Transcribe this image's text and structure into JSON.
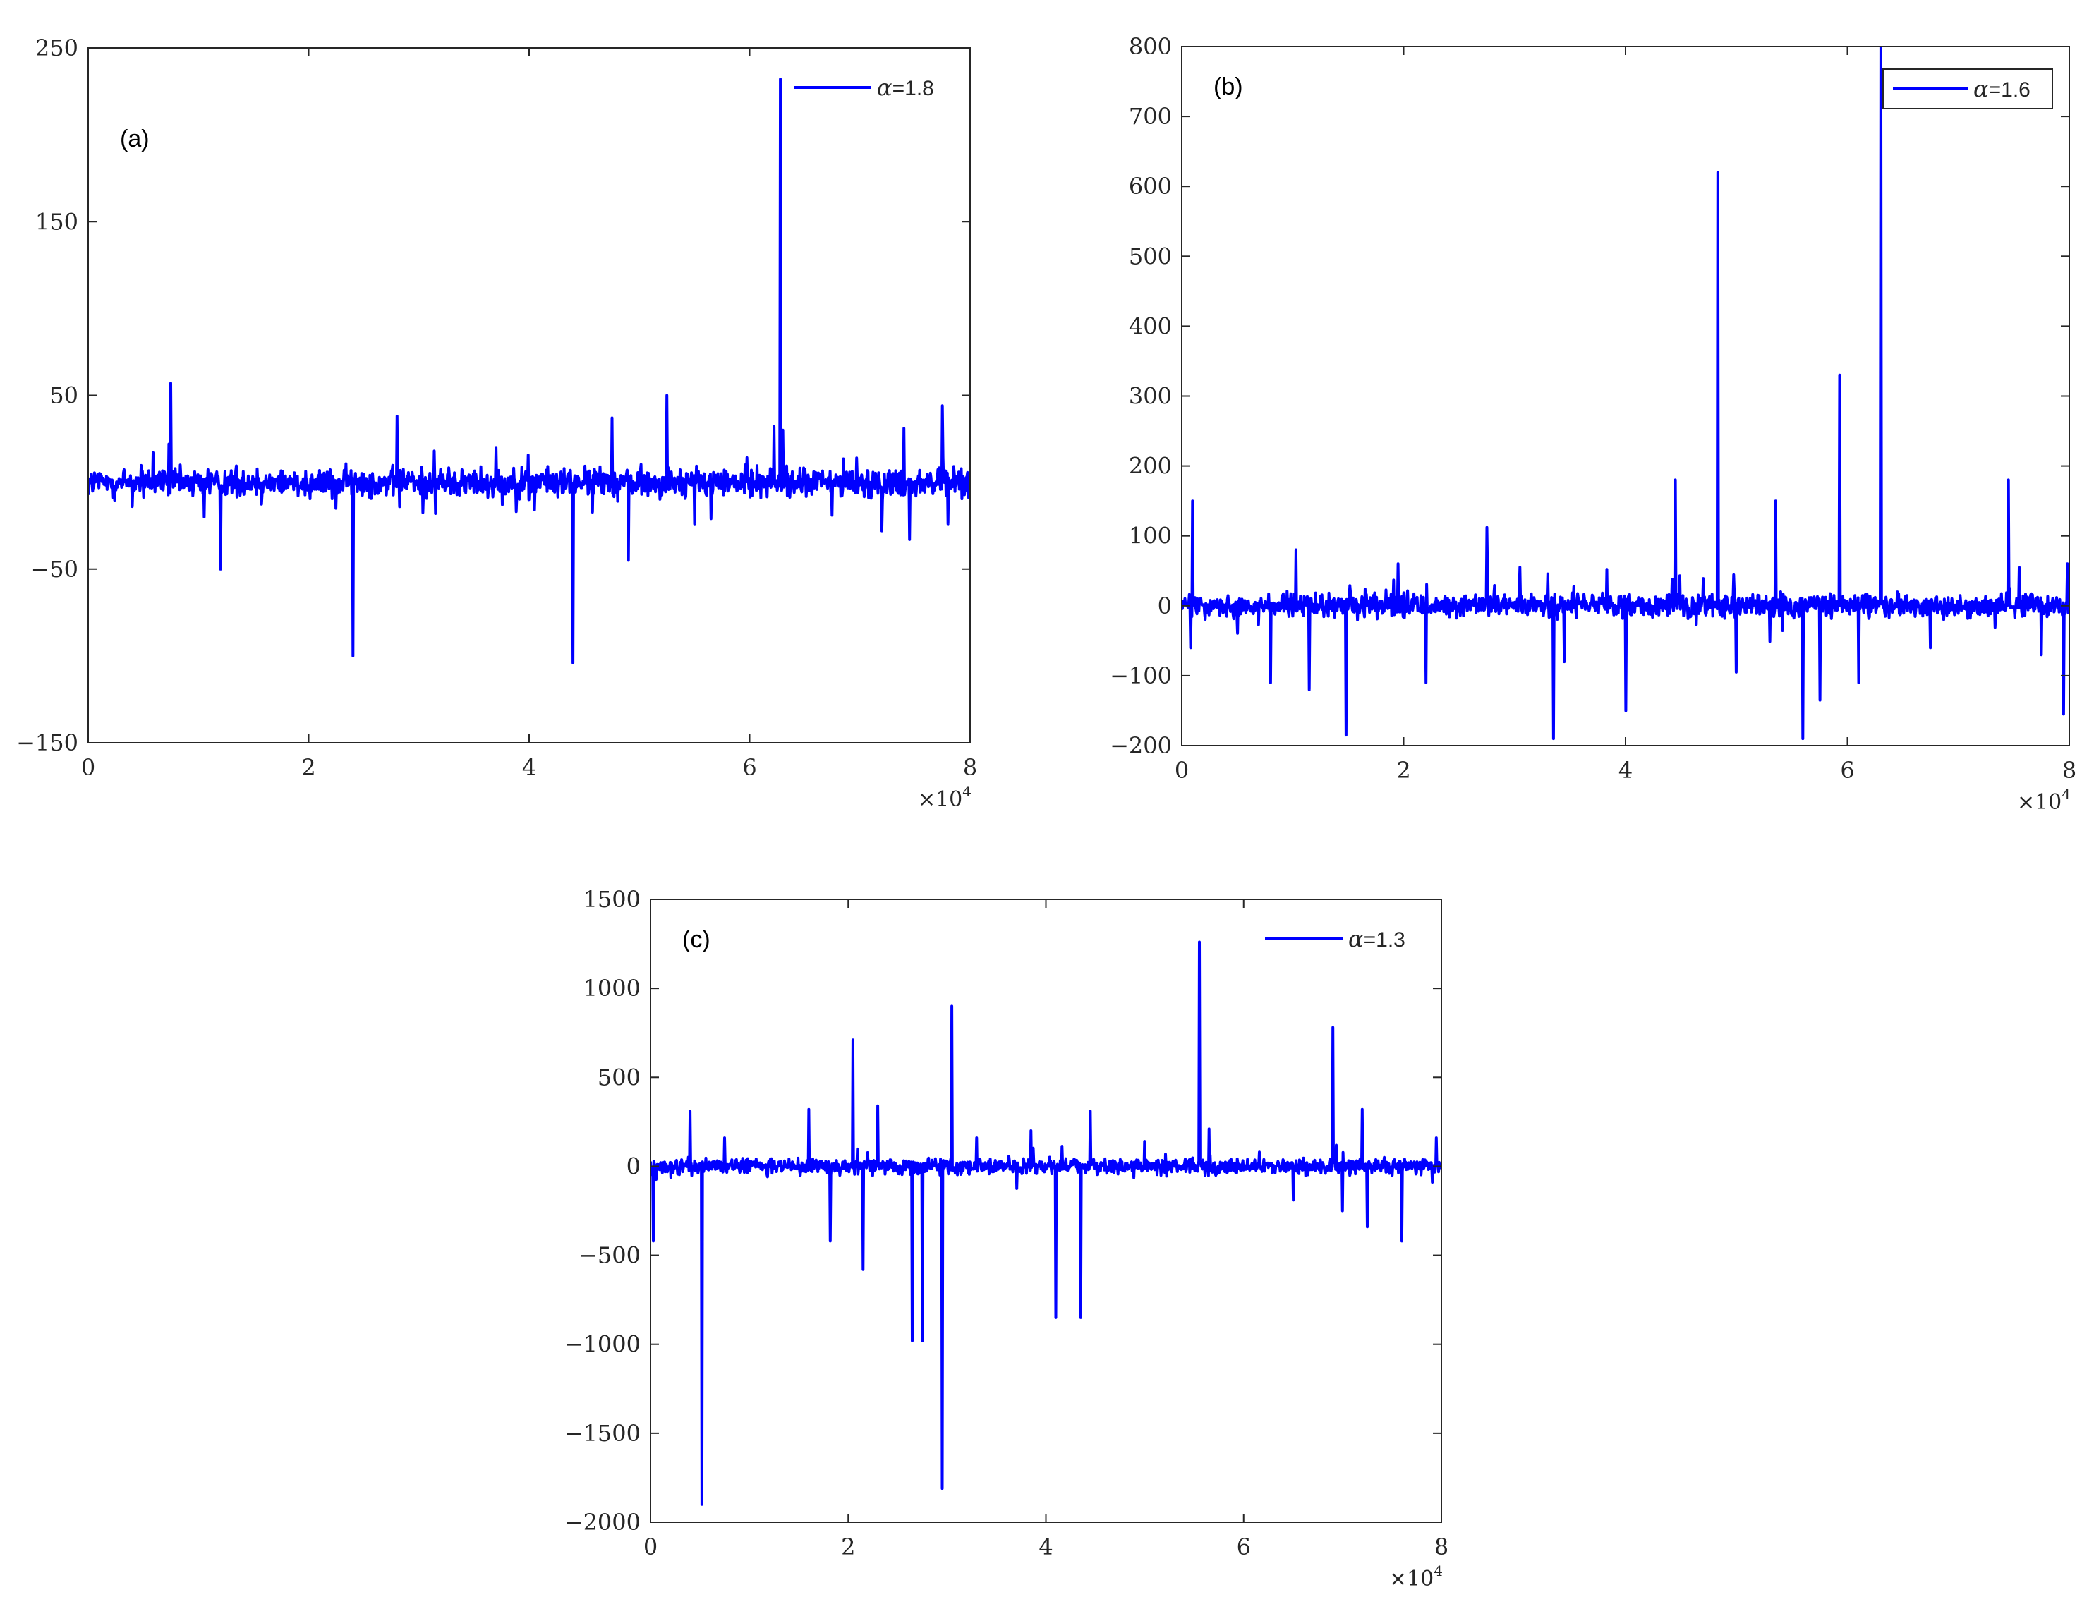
{
  "chart_data": [
    {
      "type": "line",
      "panel_label": "(a)",
      "legend_symbol": "α",
      "legend_value": "=1.8",
      "legend_placement": "top-right",
      "legend_box": false,
      "color": "#0000ff",
      "xlim": [
        0,
        8
      ],
      "ylim": [
        -150,
        250
      ],
      "x_multiplier": "×10",
      "x_multiplier_exp": "4",
      "xticks": [
        0,
        2,
        4,
        6,
        8
      ],
      "xtick_labels": [
        "0",
        "2",
        "4",
        "6",
        "8"
      ],
      "yticks": [
        -150,
        -50,
        50,
        150,
        250
      ],
      "ytick_labels": [
        "−150",
        "−50",
        "50",
        "150",
        "250"
      ],
      "noise_amplitude": 6,
      "spikes": [
        [
          0.75,
          57
        ],
        [
          0.73,
          22
        ],
        [
          1.2,
          -50
        ],
        [
          2.4,
          -100
        ],
        [
          2.8,
          38
        ],
        [
          3.7,
          20
        ],
        [
          4.4,
          -104
        ],
        [
          4.75,
          37
        ],
        [
          4.9,
          -45
        ],
        [
          5.25,
          50
        ],
        [
          5.5,
          -24
        ],
        [
          6.22,
          32
        ],
        [
          6.28,
          232
        ],
        [
          6.3,
          30
        ],
        [
          7.2,
          -28
        ],
        [
          7.4,
          31
        ],
        [
          7.45,
          -33
        ],
        [
          7.75,
          44
        ],
        [
          7.8,
          -24
        ],
        [
          0.4,
          -14
        ],
        [
          1.05,
          -20
        ],
        [
          2.25,
          -15
        ],
        [
          3.15,
          -18
        ],
        [
          4.05,
          -16
        ],
        [
          5.65,
          -21
        ],
        [
          6.75,
          -19
        ]
      ]
    },
    {
      "type": "line",
      "panel_label": "(b)",
      "legend_symbol": "α",
      "legend_value": "=1.6",
      "legend_placement": "top-right",
      "legend_box": true,
      "color": "#0000ff",
      "xlim": [
        0,
        8
      ],
      "ylim": [
        -200,
        800
      ],
      "x_multiplier": "×10",
      "x_multiplier_exp": "4",
      "xticks": [
        0,
        2,
        4,
        6,
        8
      ],
      "xtick_labels": [
        "0",
        "2",
        "4",
        "6",
        "8"
      ],
      "yticks": [
        -200,
        -100,
        0,
        100,
        200,
        300,
        400,
        500,
        600,
        700,
        800
      ],
      "ytick_labels": [
        "−200",
        "−100",
        "0",
        "100",
        "200",
        "300",
        "400",
        "500",
        "600",
        "700",
        "800"
      ],
      "noise_amplitude": 12,
      "spikes": [
        [
          0.1,
          150
        ],
        [
          0.08,
          -60
        ],
        [
          0.8,
          -110
        ],
        [
          1.03,
          80
        ],
        [
          1.15,
          -120
        ],
        [
          1.48,
          -185
        ],
        [
          1.95,
          60
        ],
        [
          2.2,
          -110
        ],
        [
          2.75,
          112
        ],
        [
          3.05,
          55
        ],
        [
          3.35,
          -190
        ],
        [
          3.45,
          -80
        ],
        [
          4.0,
          -150
        ],
        [
          4.45,
          180
        ],
        [
          4.83,
          620
        ],
        [
          5.0,
          -95
        ],
        [
          5.35,
          150
        ],
        [
          5.6,
          -190
        ],
        [
          5.75,
          -135
        ],
        [
          5.93,
          330
        ],
        [
          6.1,
          -110
        ],
        [
          6.3,
          800
        ],
        [
          6.75,
          -60
        ],
        [
          7.45,
          180
        ],
        [
          7.55,
          55
        ],
        [
          7.75,
          -70
        ],
        [
          7.95,
          -155
        ],
        [
          7.98,
          60
        ]
      ]
    },
    {
      "type": "line",
      "panel_label": "(c)",
      "legend_symbol": "α",
      "legend_value": "=1.3",
      "legend_placement": "top-right",
      "legend_box": false,
      "color": "#0000ff",
      "xlim": [
        0,
        8
      ],
      "ylim": [
        -2000,
        1500
      ],
      "x_multiplier": "×10",
      "x_multiplier_exp": "4",
      "xticks": [
        0,
        2,
        4,
        6,
        8
      ],
      "xtick_labels": [
        "0",
        "2",
        "4",
        "6",
        "8"
      ],
      "yticks": [
        -2000,
        -1500,
        -1000,
        -500,
        0,
        500,
        1000,
        1500
      ],
      "ytick_labels": [
        "−2000",
        "−1500",
        "−1000",
        "−500",
        "0",
        "500",
        "1000",
        "1500"
      ],
      "noise_amplitude": 30,
      "spikes": [
        [
          0.03,
          -420
        ],
        [
          0.4,
          310
        ],
        [
          0.52,
          -1900
        ],
        [
          0.75,
          160
        ],
        [
          1.6,
          320
        ],
        [
          1.82,
          -420
        ],
        [
          2.05,
          710
        ],
        [
          2.15,
          -580
        ],
        [
          2.3,
          340
        ],
        [
          2.65,
          -980
        ],
        [
          2.75,
          -980
        ],
        [
          2.95,
          -1810
        ],
        [
          3.05,
          900
        ],
        [
          3.3,
          160
        ],
        [
          3.85,
          200
        ],
        [
          4.1,
          -850
        ],
        [
          4.35,
          -850
        ],
        [
          4.45,
          310
        ],
        [
          5.0,
          140
        ],
        [
          5.55,
          1260
        ],
        [
          5.65,
          210
        ],
        [
          6.5,
          -190
        ],
        [
          6.9,
          780
        ],
        [
          7.0,
          -250
        ],
        [
          7.2,
          320
        ],
        [
          7.25,
          -340
        ],
        [
          7.6,
          -420
        ],
        [
          7.95,
          160
        ]
      ]
    }
  ]
}
